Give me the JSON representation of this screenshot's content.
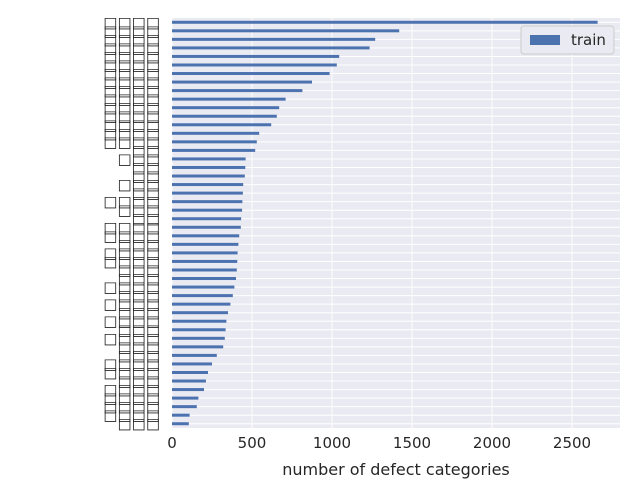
{
  "chart_data": {
    "type": "bar",
    "orientation": "horizontal",
    "xlabel": "number of defect categories",
    "ylabel": "",
    "xlim": [
      0,
      2800
    ],
    "xticks": [
      0,
      500,
      1000,
      1500,
      2000,
      2500
    ],
    "grid": true,
    "legend_position": "top-right",
    "bar_color": "#4c72b0",
    "plot_background": "#eaeaf2",
    "categories": [
      "□□□□",
      "□□□□",
      "□□□□",
      "□□□□",
      "□□□□",
      "□□□□",
      "□□□□",
      "□□□□",
      "□□□□",
      "□□□□",
      "□□□□",
      "□□□□",
      "□□□□",
      "□□□□",
      "□□□□",
      "□□",
      "□□□",
      "□□",
      "□□",
      "□□□",
      "□□",
      "□□□□",
      "□□□",
      "□□",
      "□□□□",
      "□□□□",
      "□□□",
      "□□□□",
      "□□□□",
      "□□□",
      "□□□",
      "□□□□",
      "□□□",
      "□□□□",
      "□□□",
      "□□□□",
      "□□□",
      "□□□□",
      "□□□",
      "□□□",
      "□□□□",
      "□□□□",
      "□□□",
      "□□□□",
      "□□□□",
      "□□□□",
      "□□□□",
      "□□□"
    ],
    "series": [
      {
        "name": "train",
        "values": [
          2660,
          1420,
          1270,
          1235,
          1045,
          1030,
          985,
          875,
          815,
          710,
          670,
          655,
          620,
          545,
          530,
          520,
          460,
          458,
          455,
          445,
          443,
          440,
          438,
          432,
          430,
          420,
          415,
          410,
          408,
          405,
          400,
          390,
          380,
          365,
          350,
          340,
          335,
          330,
          320,
          280,
          250,
          225,
          212,
          200,
          165,
          155,
          110,
          105
        ]
      }
    ]
  }
}
